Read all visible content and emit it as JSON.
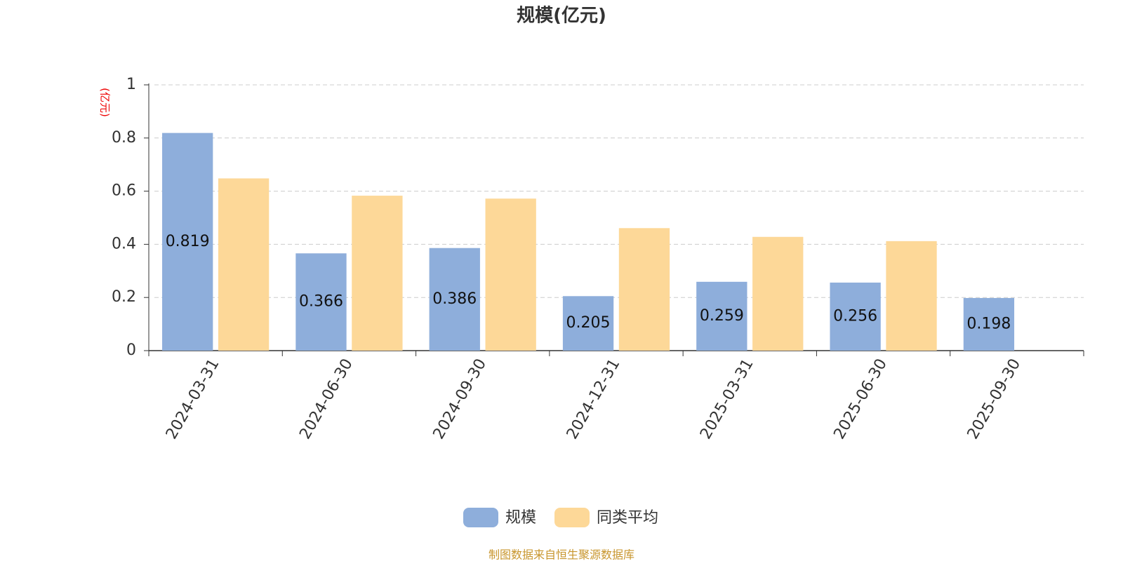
{
  "chart_data": {
    "type": "bar",
    "title": "规模(亿元)",
    "y_axis_label": "(亿元)",
    "categories": [
      "2024-03-31",
      "2024-06-30",
      "2024-09-30",
      "2024-12-31",
      "2025-03-31",
      "2025-06-30",
      "2025-09-30"
    ],
    "series": [
      {
        "name": "规模",
        "color": "#8eaedb",
        "values": [
          0.819,
          0.366,
          0.386,
          0.205,
          0.259,
          0.256,
          0.198
        ],
        "show_labels": true
      },
      {
        "name": "同类平均",
        "color": "#fdd898",
        "values": [
          0.648,
          0.583,
          0.572,
          0.461,
          0.428,
          0.412,
          null
        ],
        "show_labels": false
      }
    ],
    "ylim": [
      0,
      1
    ],
    "yticks": [
      0,
      0.2,
      0.4,
      0.6,
      0.8,
      1
    ],
    "grid": true,
    "legend": "bottom",
    "source": "制图数据来自恒生聚源数据库"
  }
}
